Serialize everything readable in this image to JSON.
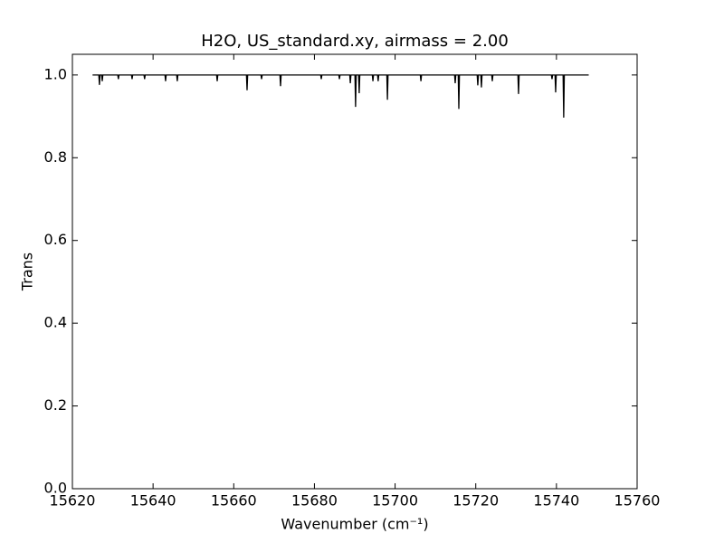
{
  "chart_data": {
    "type": "line",
    "title": "H2O, US_standard.xy, airmass = 2.00",
    "xlabel": "Wavenumber (cm⁻¹)",
    "ylabel": "Trans",
    "color": "#000000",
    "xlim": [
      15620,
      15760
    ],
    "ylim": [
      0,
      1.05
    ],
    "xticks": [
      15620,
      15640,
      15660,
      15680,
      15700,
      15720,
      15740,
      15760
    ],
    "yticks": [
      {
        "value": 0,
        "label": "0.0"
      },
      {
        "value": 0.2,
        "label": "0.2"
      },
      {
        "value": 0.4,
        "label": "0.4"
      },
      {
        "value": 0.6,
        "label": "0.6"
      },
      {
        "value": 0.8,
        "label": "0.8"
      },
      {
        "value": 1.0,
        "label": "1.0"
      }
    ],
    "x": [
      15625,
      15626.55,
      15626.7,
      15626.85,
      15627.25,
      15627.4,
      15627.55,
      15631.25,
      15631.4,
      15631.55,
      15634.65,
      15634.8,
      15634.95,
      15637.75,
      15637.9,
      15638.05,
      15642.95,
      15643.1,
      15643.25,
      15645.85,
      15646.0,
      15646.15,
      15655.75,
      15655.9,
      15656.05,
      15663.15,
      15663.3,
      15663.45,
      15666.75,
      15666.9,
      15667.05,
      15671.45,
      15671.6,
      15671.75,
      15681.55,
      15681.7,
      15681.85,
      15686.05,
      15686.2,
      15686.35,
      15688.75,
      15688.9,
      15689.05,
      15690.05,
      15690.2,
      15690.35,
      15690.95,
      15691.1,
      15691.25,
      15694.35,
      15694.5,
      15694.65,
      15695.65,
      15695.8,
      15695.95,
      15697.95,
      15698.1,
      15698.25,
      15706.25,
      15706.4,
      15706.55,
      15714.75,
      15714.9,
      15715.05,
      15715.65,
      15715.8,
      15715.95,
      15720.35,
      15720.5,
      15720.65,
      15721.25,
      15721.4,
      15721.55,
      15723.95,
      15724.1,
      15724.25,
      15730.45,
      15730.6,
      15730.75,
      15738.75,
      15738.9,
      15739.05,
      15739.65,
      15739.8,
      15739.95,
      15741.65,
      15741.8,
      15741.95,
      15748
    ],
    "values": [
      1.0,
      1.0,
      0.976,
      1.0,
      1.0,
      0.985,
      1.0,
      1.0,
      0.99,
      1.0,
      1.0,
      0.99,
      1.0,
      1.0,
      0.99,
      1.0,
      1.0,
      0.985,
      1.0,
      1.0,
      0.985,
      1.0,
      1.0,
      0.985,
      1.0,
      1.0,
      0.963,
      1.0,
      1.0,
      0.99,
      1.0,
      1.0,
      0.973,
      1.0,
      1.0,
      0.99,
      1.0,
      1.0,
      0.99,
      1.0,
      1.0,
      0.98,
      1.0,
      1.0,
      0.923,
      1.0,
      1.0,
      0.956,
      1.0,
      1.0,
      0.985,
      1.0,
      1.0,
      0.985,
      1.0,
      1.0,
      0.94,
      1.0,
      1.0,
      0.985,
      1.0,
      1.0,
      0.98,
      1.0,
      1.0,
      0.918,
      1.0,
      1.0,
      0.975,
      1.0,
      1.0,
      0.97,
      1.0,
      1.0,
      0.985,
      1.0,
      1.0,
      0.954,
      1.0,
      1.0,
      0.99,
      1.0,
      1.0,
      0.958,
      1.0,
      1.0,
      0.897,
      1.0,
      1.0
    ]
  }
}
